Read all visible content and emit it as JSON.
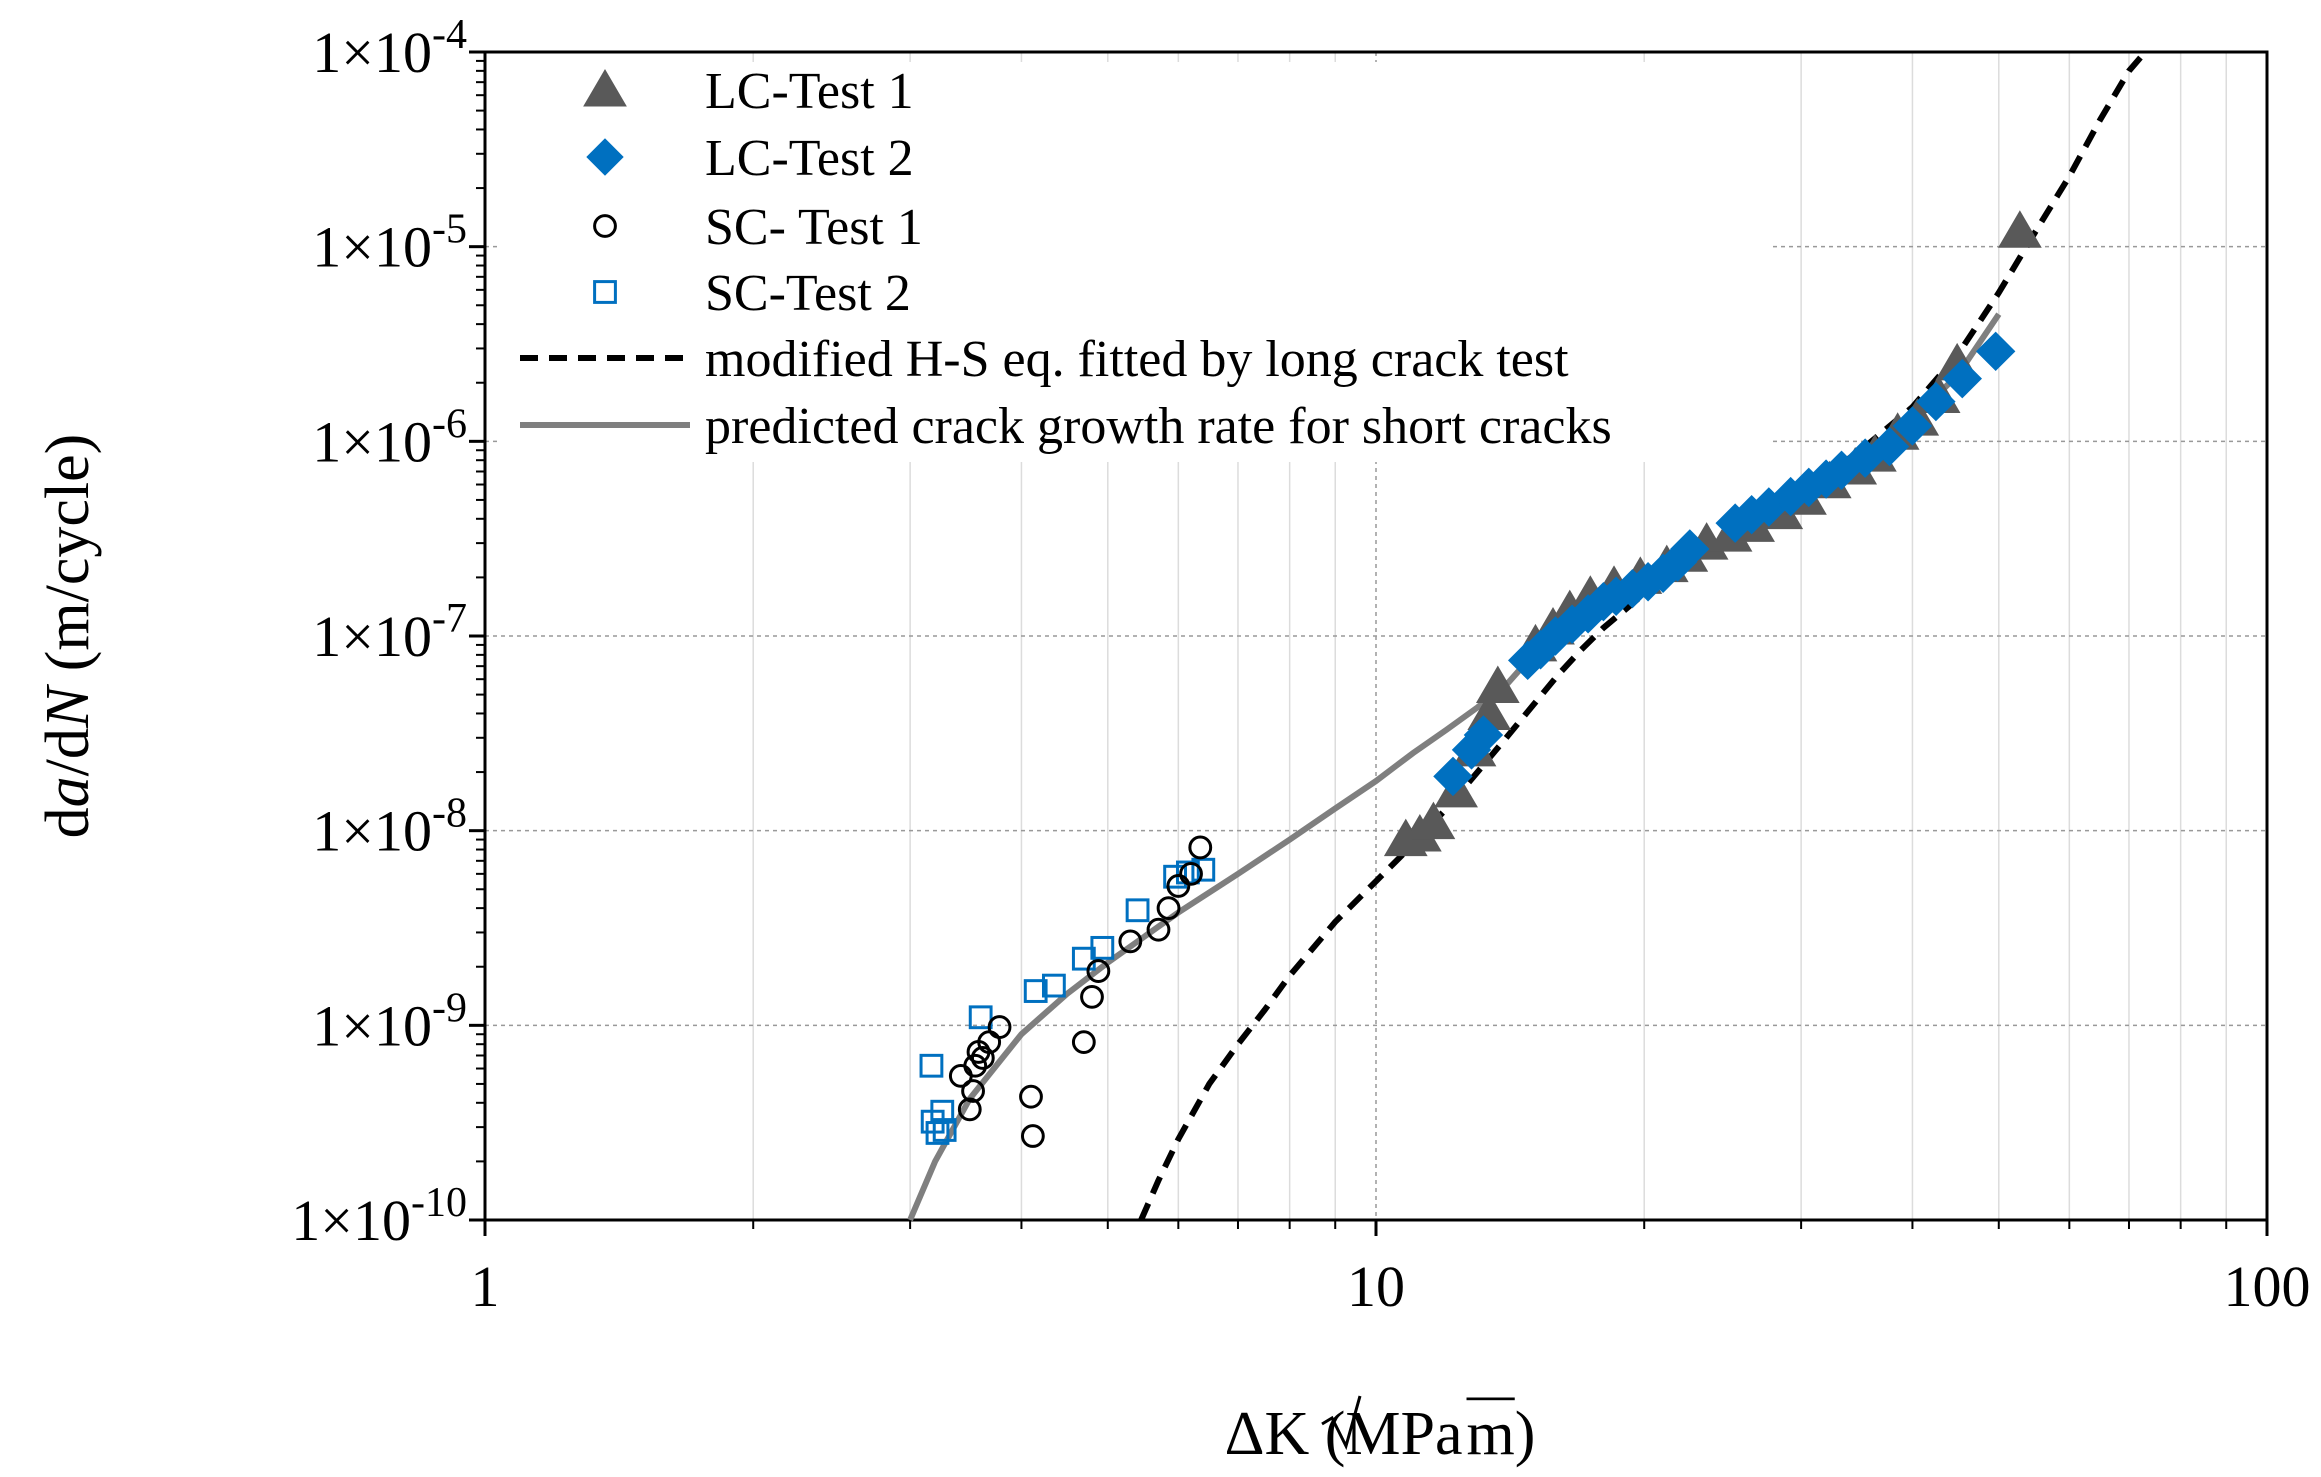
{
  "chart_data": {
    "type": "scatter",
    "x_scale": "log",
    "y_scale": "log",
    "xlim": [
      1,
      100
    ],
    "ylim": [
      1e-10,
      0.0001
    ],
    "grid": true,
    "legend_position": "top-left",
    "xlabel": {
      "prefix": "ΔK (MPa",
      "sqrt_body": "m",
      "suffix": ")"
    },
    "ylabel": {
      "d1": "d",
      "a": "a",
      "d2": "/d",
      "n": "N",
      "rest": " (m/cycle)"
    },
    "x_ticks": [
      {
        "value": 1,
        "label": "1"
      },
      {
        "value": 10,
        "label": "10"
      },
      {
        "value": 100,
        "label": "100"
      }
    ],
    "y_ticks": [
      {
        "value": 0.0001,
        "mant": "1×10",
        "exp": "-4"
      },
      {
        "value": 1e-05,
        "mant": "1×10",
        "exp": "-5"
      },
      {
        "value": 1e-06,
        "mant": "1×10",
        "exp": "-6"
      },
      {
        "value": 1e-07,
        "mant": "1×10",
        "exp": "-7"
      },
      {
        "value": 1e-08,
        "mant": "1×10",
        "exp": "-8"
      },
      {
        "value": 1e-09,
        "mant": "1×10",
        "exp": "-9"
      },
      {
        "value": 1e-10,
        "mant": "1×10",
        "exp": "-10"
      }
    ],
    "series": [
      {
        "name": "LC-Test 1",
        "marker": "triangle",
        "color": "#595959",
        "filled": true,
        "points": [
          [
            10.8,
            9e-09
          ],
          [
            11.2,
            9.5e-09
          ],
          [
            11.6,
            1.1e-08
          ],
          [
            12.3,
            1.6e-08
          ],
          [
            12.9,
            2.6e-08
          ],
          [
            13.4,
            4e-08
          ],
          [
            13.7,
            5.5e-08
          ],
          [
            15.1,
            9e-08
          ],
          [
            15.8,
            1.1e-07
          ],
          [
            16.5,
            1.35e-07
          ],
          [
            17.4,
            1.6e-07
          ],
          [
            18.5,
            1.8e-07
          ],
          [
            19.8,
            2e-07
          ],
          [
            21.2,
            2.3e-07
          ],
          [
            22.3,
            2.6e-07
          ],
          [
            23.5,
            3e-07
          ],
          [
            25.0,
            3.3e-07
          ],
          [
            26.5,
            3.7e-07
          ],
          [
            28.5,
            4.3e-07
          ],
          [
            30.3,
            5.1e-07
          ],
          [
            32.3,
            6.2e-07
          ],
          [
            34.5,
            7.3e-07
          ],
          [
            36.3,
            8.5e-07
          ],
          [
            38.5,
            1.1e-06
          ],
          [
            40.5,
            1.3e-06
          ],
          [
            42.8,
            1.7e-06
          ],
          [
            44.9,
            2.5e-06
          ],
          [
            52.8,
            1.2e-05
          ]
        ]
      },
      {
        "name": "LC-Test 2",
        "marker": "diamond",
        "color": "#0070C0",
        "filled": true,
        "points": [
          [
            12.2,
            1.9e-08
          ],
          [
            12.8,
            2.6e-08
          ],
          [
            13.2,
            3.1e-08
          ],
          [
            14.8,
            7.5e-08
          ],
          [
            15.3,
            8.5e-08
          ],
          [
            15.9,
            1e-07
          ],
          [
            16.6,
            1.15e-07
          ],
          [
            17.3,
            1.3e-07
          ],
          [
            18.0,
            1.5e-07
          ],
          [
            18.6,
            1.6e-07
          ],
          [
            19.4,
            1.75e-07
          ],
          [
            20.2,
            1.9e-07
          ],
          [
            21.0,
            2.1e-07
          ],
          [
            21.8,
            2.4e-07
          ],
          [
            22.5,
            2.8e-07
          ],
          [
            25.3,
            3.8e-07
          ],
          [
            26.4,
            4.2e-07
          ],
          [
            27.6,
            4.6e-07
          ],
          [
            29.2,
            5.2e-07
          ],
          [
            30.6,
            5.8e-07
          ],
          [
            32.0,
            6.4e-07
          ],
          [
            33.3,
            7.1e-07
          ],
          [
            35.4,
            8.2e-07
          ],
          [
            37.7,
            9.4e-07
          ],
          [
            40.0,
            1.2e-06
          ],
          [
            42.5,
            1.6e-06
          ],
          [
            45.5,
            2.1e-06
          ],
          [
            49.6,
            2.9e-06
          ]
        ]
      },
      {
        "name": "SC- Test 1",
        "marker": "circle",
        "color": "#000000",
        "filled": false,
        "points": [
          [
            3.42,
            5.5e-10
          ],
          [
            3.5,
            3.7e-10
          ],
          [
            3.53,
            4.6e-10
          ],
          [
            3.55,
            6.2e-10
          ],
          [
            3.58,
            7.3e-10
          ],
          [
            3.62,
            6.8e-10
          ],
          [
            3.68,
            8.2e-10
          ],
          [
            3.78,
            9.8e-10
          ],
          [
            4.1,
            4.3e-10
          ],
          [
            4.12,
            2.7e-10
          ],
          [
            4.7,
            8.2e-10
          ],
          [
            4.8,
            1.4e-09
          ],
          [
            4.88,
            1.9e-09
          ],
          [
            5.3,
            2.7e-09
          ],
          [
            5.7,
            3.1e-09
          ],
          [
            5.85,
            4e-09
          ],
          [
            6.0,
            5.2e-09
          ],
          [
            6.2,
            6e-09
          ],
          [
            6.35,
            8.2e-09
          ]
        ]
      },
      {
        "name": "SC-Test  2",
        "marker": "square",
        "color": "#0070C0",
        "filled": false,
        "points": [
          [
            3.17,
            6.2e-10
          ],
          [
            3.18,
            3.2e-10
          ],
          [
            3.22,
            2.8e-10
          ],
          [
            3.26,
            3.6e-10
          ],
          [
            3.28,
            2.9e-10
          ],
          [
            3.6,
            1.1e-09
          ],
          [
            4.15,
            1.5e-09
          ],
          [
            4.35,
            1.6e-09
          ],
          [
            4.7,
            2.2e-09
          ],
          [
            4.93,
            2.5e-09
          ],
          [
            5.4,
            3.9e-09
          ],
          [
            5.95,
            5.8e-09
          ],
          [
            6.15,
            6.1e-09
          ],
          [
            6.4,
            6.3e-09
          ]
        ]
      },
      {
        "name": "modified H-S eq. fitted by long crack test",
        "line": "dashed",
        "color": "#000000",
        "points": [
          [
            5.45,
            1e-10
          ],
          [
            5.7,
            1.6e-10
          ],
          [
            6.0,
            2.6e-10
          ],
          [
            6.5,
            5e-10
          ],
          [
            7.0,
            8e-10
          ],
          [
            7.5,
            1.2e-09
          ],
          [
            8.0,
            1.8e-09
          ],
          [
            9.0,
            3.4e-09
          ],
          [
            10.0,
            5.5e-09
          ],
          [
            11.0,
            8.5e-09
          ],
          [
            12.0,
            1.3e-08
          ],
          [
            13.0,
            2e-08
          ],
          [
            14.0,
            3e-08
          ],
          [
            15.0,
            4.4e-08
          ],
          [
            16.0,
            6.3e-08
          ],
          [
            17.0,
            8.5e-08
          ],
          [
            18.0,
            1.1e-07
          ],
          [
            20.0,
            1.65e-07
          ],
          [
            22.0,
            2.3e-07
          ],
          [
            25.0,
            3.2e-07
          ],
          [
            30.0,
            5.5e-07
          ],
          [
            35.0,
            9e-07
          ],
          [
            40.0,
            1.5e-06
          ],
          [
            45.0,
            2.8e-06
          ],
          [
            50.0,
            5.8e-06
          ],
          [
            55.0,
            1.2e-05
          ],
          [
            60.0,
            2.3e-05
          ],
          [
            65.0,
            4.5e-05
          ],
          [
            70.0,
            8e-05
          ],
          [
            73.0,
            0.0001
          ]
        ]
      },
      {
        "name": "predicted crack growth rate for short cracks",
        "line": "solid",
        "color": "#7f7f7f",
        "points": [
          [
            3.0,
            1e-10
          ],
          [
            3.2,
            2e-10
          ],
          [
            3.5,
            4.2e-10
          ],
          [
            4.0,
            9e-10
          ],
          [
            4.5,
            1.45e-09
          ],
          [
            5.0,
            2.1e-09
          ],
          [
            6.0,
            3.8e-09
          ],
          [
            7.0,
            6e-09
          ],
          [
            8.0,
            9e-09
          ],
          [
            9.0,
            1.3e-08
          ],
          [
            10.0,
            1.8e-08
          ],
          [
            11.0,
            2.5e-08
          ],
          [
            12.0,
            3.3e-08
          ],
          [
            13.0,
            4.3e-08
          ],
          [
            14.0,
            5.6e-08
          ],
          [
            15.0,
            8e-08
          ],
          [
            16.0,
            1.05e-07
          ],
          [
            18.0,
            1.45e-07
          ],
          [
            20.0,
            1.85e-07
          ],
          [
            22.0,
            2.3e-07
          ],
          [
            25.0,
            3.1e-07
          ],
          [
            30.0,
            5.3e-07
          ],
          [
            35.0,
            8.3e-07
          ],
          [
            40.0,
            1.3e-06
          ],
          [
            45.0,
            2.2e-06
          ],
          [
            50.0,
            4.5e-06
          ]
        ]
      }
    ]
  }
}
